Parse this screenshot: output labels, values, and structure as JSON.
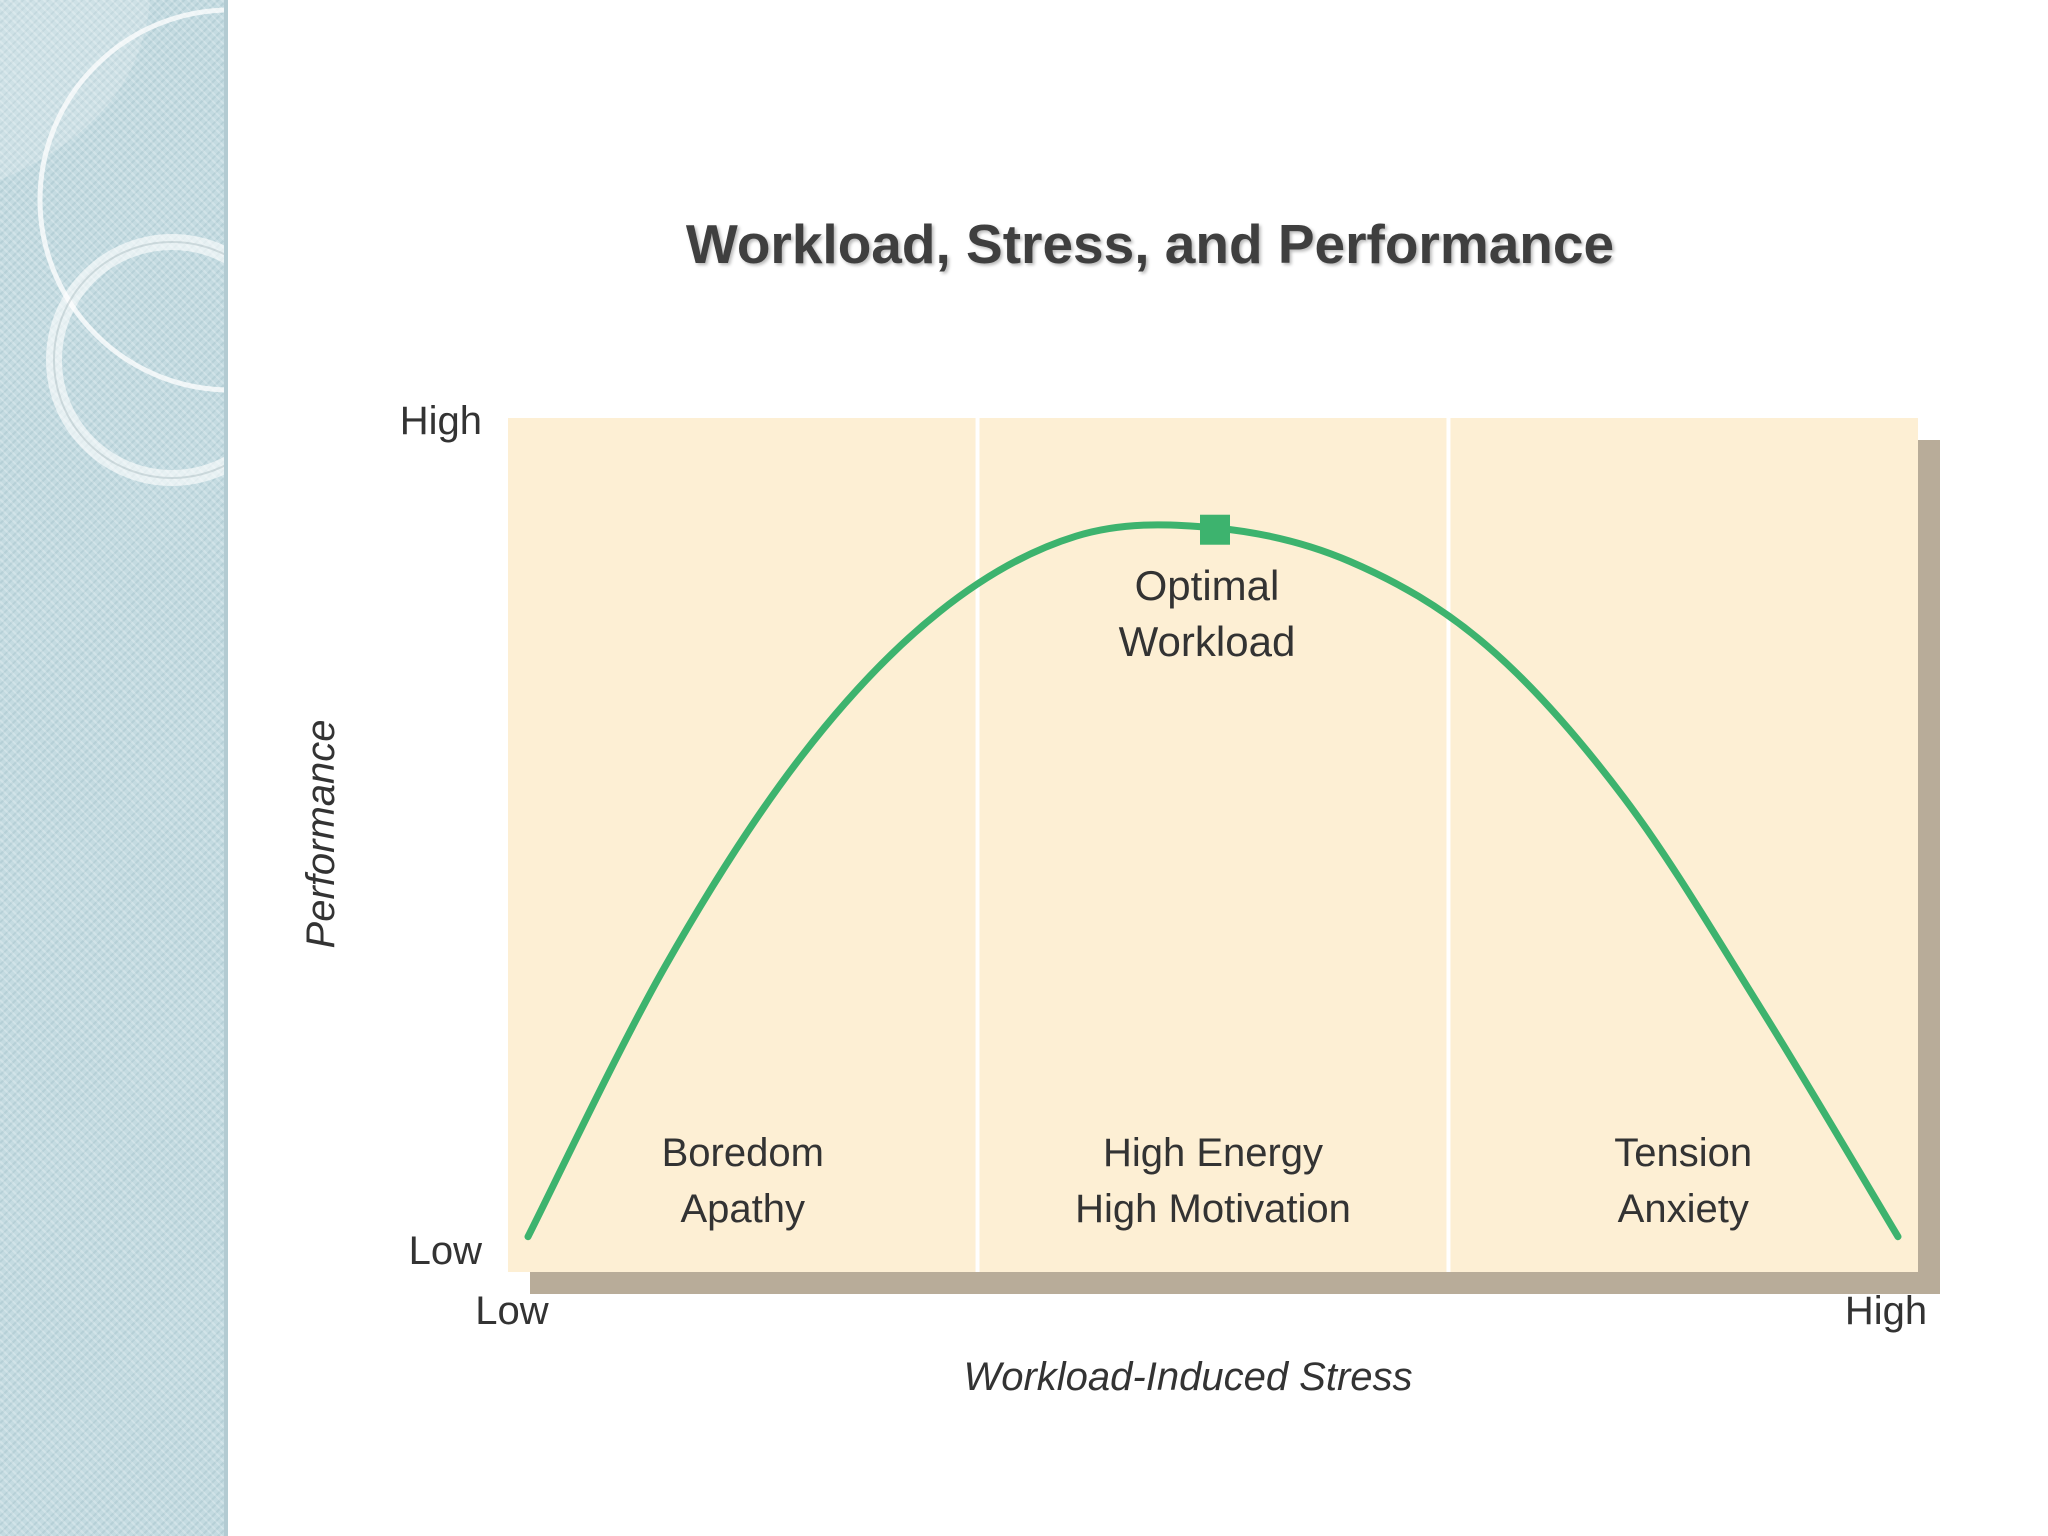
{
  "slide": {
    "title": "Workload, Stress, and Performance"
  },
  "colors": {
    "sidebar": "#c4dbe1",
    "panel": "#fdefd4",
    "panel_shadow": "#b8ac99",
    "curve": "#3db36e",
    "text": "#333333"
  },
  "chart_data": {
    "type": "line",
    "title": "Workload, Stress, and Performance",
    "xlabel": "Workload-Induced Stress",
    "ylabel": "Performance",
    "x_ticks": [
      "Low",
      "High"
    ],
    "y_ticks": [
      "Low",
      "High"
    ],
    "xlim": [
      0,
      1
    ],
    "ylim": [
      0,
      1
    ],
    "grid": false,
    "series": [
      {
        "x": [
          0.0,
          0.1,
          0.2,
          0.3,
          0.4,
          0.5,
          0.6,
          0.7,
          0.8,
          0.9,
          1.0
        ],
        "y": [
          0.03,
          0.35,
          0.6,
          0.77,
          0.86,
          0.87,
          0.83,
          0.73,
          0.55,
          0.3,
          0.03
        ]
      }
    ],
    "optimum": {
      "x": 0.5,
      "y": 0.87
    },
    "regions": [
      {
        "x_from": 0.0,
        "x_to": 0.333,
        "lines": [
          "Boredom",
          "Apathy"
        ]
      },
      {
        "x_from": 0.333,
        "x_to": 0.667,
        "lines": [
          "High Energy",
          "High Motivation"
        ]
      },
      {
        "x_from": 0.667,
        "x_to": 1.0,
        "lines": [
          "Tension",
          "Anxiety"
        ]
      }
    ],
    "annotations": [
      {
        "lines": [
          "Optimal",
          "Workload"
        ]
      }
    ]
  }
}
